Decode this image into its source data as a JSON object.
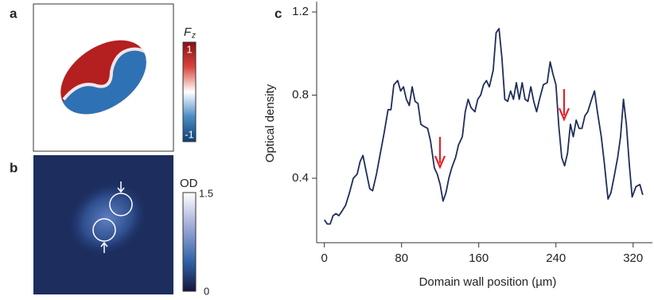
{
  "panels": {
    "a": {
      "label": "a",
      "colorbar_label": {
        "main": "F",
        "sub": "z"
      },
      "colorbar_max": "1",
      "colorbar_min": "-1"
    },
    "b": {
      "label": "b",
      "colorbar_label": "OD",
      "colorbar_max": "1.5",
      "colorbar_min": "0"
    },
    "c": {
      "label": "c"
    }
  },
  "chart_data": {
    "type": "line",
    "y_label": "Optical density",
    "x_label": "Domain wall position (µm)",
    "color": "#1f2d5a",
    "x": [
      0,
      3,
      6,
      9,
      12,
      15,
      18,
      22,
      26,
      30,
      34,
      37,
      40,
      43,
      47,
      50,
      54,
      58,
      62,
      66,
      69,
      72,
      76,
      79,
      82,
      85,
      88,
      91,
      94,
      97,
      100,
      103,
      107,
      110,
      114,
      117,
      120,
      123,
      126,
      129,
      132,
      136,
      139,
      143,
      146,
      149,
      152,
      156,
      159,
      162,
      165,
      168,
      171,
      175,
      178,
      181,
      184,
      187,
      190,
      193,
      196,
      199,
      202,
      205,
      208,
      211,
      214,
      217,
      220,
      223,
      227,
      231,
      234,
      237,
      240,
      243,
      246,
      249,
      252,
      255,
      258,
      261,
      264,
      267,
      270,
      273,
      277,
      280,
      283,
      287,
      290,
      294,
      297,
      300,
      304,
      307,
      310,
      313,
      316,
      319,
      323,
      327,
      330
    ],
    "values": [
      0.2,
      0.18,
      0.18,
      0.22,
      0.23,
      0.22,
      0.24,
      0.27,
      0.33,
      0.4,
      0.42,
      0.48,
      0.51,
      0.44,
      0.35,
      0.34,
      0.42,
      0.52,
      0.62,
      0.73,
      0.73,
      0.85,
      0.87,
      0.82,
      0.84,
      0.78,
      0.75,
      0.84,
      0.77,
      0.76,
      0.66,
      0.65,
      0.64,
      0.58,
      0.45,
      0.42,
      0.37,
      0.29,
      0.33,
      0.4,
      0.45,
      0.5,
      0.56,
      0.6,
      0.72,
      0.78,
      0.74,
      0.72,
      0.78,
      0.8,
      0.85,
      0.87,
      0.84,
      0.92,
      1.1,
      1.12,
      0.98,
      0.78,
      0.77,
      0.82,
      0.78,
      0.86,
      0.78,
      0.86,
      0.78,
      0.77,
      0.84,
      0.77,
      0.72,
      0.78,
      0.85,
      0.86,
      0.96,
      0.9,
      0.85,
      0.65,
      0.5,
      0.46,
      0.52,
      0.66,
      0.6,
      0.68,
      0.64,
      0.64,
      0.7,
      0.72,
      0.78,
      0.82,
      0.72,
      0.6,
      0.48,
      0.3,
      0.33,
      0.4,
      0.5,
      0.6,
      0.78,
      0.66,
      0.47,
      0.31,
      0.36,
      0.37,
      0.32
    ],
    "xlim": [
      -8,
      340
    ],
    "ylim": [
      0.09,
      1.25
    ],
    "xticks": [
      0,
      80,
      160,
      240,
      320
    ],
    "yticks": [
      0.4,
      0.8,
      1.2
    ]
  }
}
